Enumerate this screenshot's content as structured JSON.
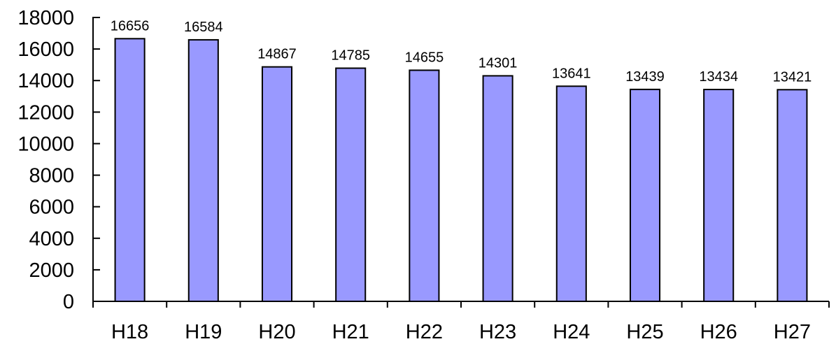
{
  "chart_data": {
    "type": "bar",
    "categories": [
      "H18",
      "H19",
      "H20",
      "H21",
      "H22",
      "H23",
      "H24",
      "H25",
      "H26",
      "H27"
    ],
    "values": [
      16656,
      16584,
      14867,
      14785,
      14655,
      14301,
      13641,
      13439,
      13434,
      13421
    ],
    "data_labels": [
      "16656",
      "16584",
      "14867",
      "14785",
      "14655",
      "14301",
      "13641",
      "13439",
      "13434",
      "13421"
    ],
    "yticks": [
      0,
      2000,
      4000,
      6000,
      8000,
      10000,
      12000,
      14000,
      16000,
      18000
    ],
    "ytick_labels": [
      "0",
      "2000",
      "4000",
      "6000",
      "8000",
      "10000",
      "12000",
      "14000",
      "16000",
      "18000"
    ],
    "ylim": [
      0,
      18000
    ],
    "title": "",
    "xlabel": "",
    "ylabel": "",
    "grid": false,
    "legend": "none",
    "colors": {
      "bar_fill": "#9999ff",
      "bar_stroke": "#000000",
      "axis": "#000000"
    }
  }
}
